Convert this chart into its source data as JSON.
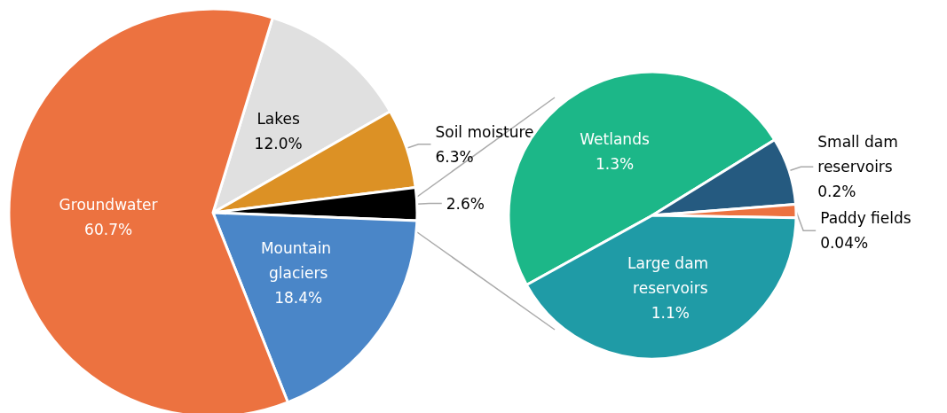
{
  "chart_data": [
    {
      "type": "pie",
      "categories": [
        "Lakes",
        "Soil moisture",
        null,
        "Mountain glaciers",
        "Groundwater"
      ],
      "values": [
        12.0,
        6.3,
        2.6,
        18.4,
        60.7
      ],
      "colors": [
        "#e0e0e0",
        "#dc9125",
        "#000000",
        "#4a86c8",
        "#ec7240"
      ],
      "value_labels": [
        "12.0%",
        "6.3%",
        "2.6%",
        "18.4%",
        "60.7%"
      ]
    },
    {
      "type": "pie",
      "categories": [
        "Wetlands",
        "Small dam reservoirs",
        "Paddy fields",
        "Large dam reservoirs"
      ],
      "values": [
        1.3,
        0.2,
        0.04,
        1.1
      ],
      "colors": [
        "#1cb788",
        "#255a80",
        "#ec7240",
        "#1f9ba6"
      ],
      "value_labels": [
        "1.3%",
        "0.2%",
        "0.04%",
        "1.1%"
      ]
    }
  ]
}
